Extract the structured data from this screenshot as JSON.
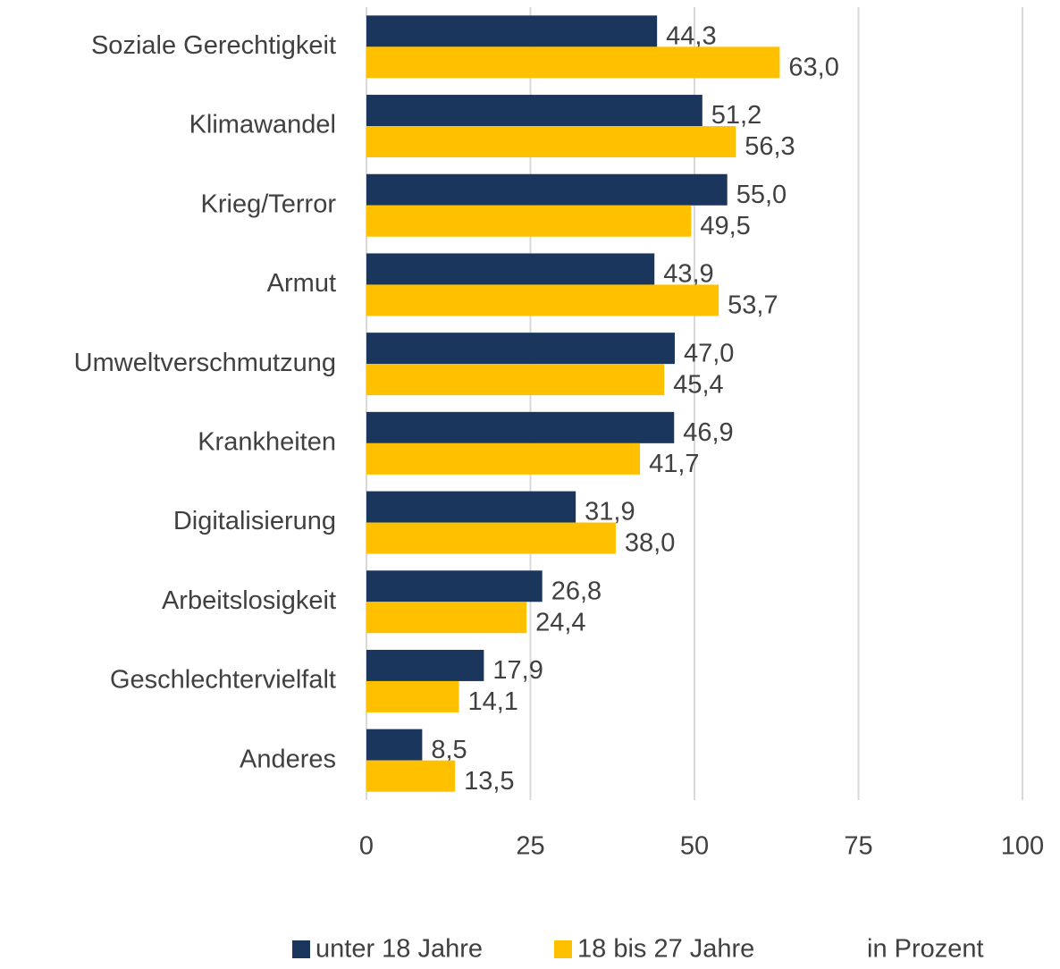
{
  "chart_data": {
    "type": "bar",
    "orientation": "horizontal",
    "categories": [
      "Soziale Gerechtigkeit",
      "Klimawandel",
      "Krieg/Terror",
      "Armut",
      "Umweltverschmutzung",
      "Krankheiten",
      "Digitalisierung",
      "Arbeitslosigkeit",
      "Geschlechtervielfalt",
      "Anderes"
    ],
    "series": [
      {
        "name": "unter 18 Jahre",
        "color": "#1b365d",
        "values": [
          44.3,
          51.2,
          55.0,
          43.9,
          47.0,
          46.9,
          31.9,
          26.8,
          17.9,
          8.5
        ],
        "value_labels": [
          "44,3",
          "51,2",
          "55,0",
          "43,9",
          "47,0",
          "46,9",
          "31,9",
          "26,8",
          "17,9",
          "8,5"
        ]
      },
      {
        "name": "18 bis 27 Jahre",
        "color": "#ffc000",
        "values": [
          63.0,
          56.3,
          49.5,
          53.7,
          45.4,
          41.7,
          38.0,
          24.4,
          14.1,
          13.5
        ],
        "value_labels": [
          "63,0",
          "56,3",
          "49,5",
          "53,7",
          "45,4",
          "41,7",
          "38,0",
          "24,4",
          "14,1",
          "13,5"
        ]
      }
    ],
    "xlim": [
      0,
      100
    ],
    "xticks": [
      0,
      25,
      50,
      75,
      100
    ],
    "grid": true,
    "legend": "bottom",
    "annotation": "in Prozent"
  }
}
